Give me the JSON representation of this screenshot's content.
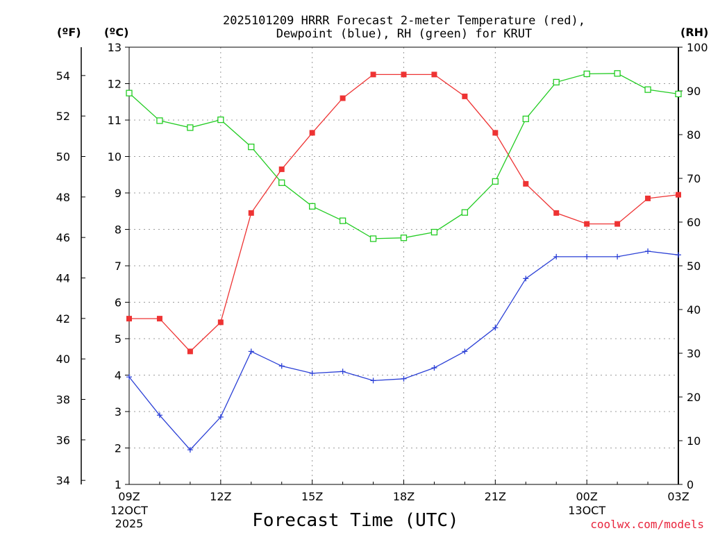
{
  "chart_data": {
    "type": "line",
    "title_line1": "2025101209 HRRR Forecast 2-meter Temperature (red),",
    "title_line2": "Dewpoint (blue), RH (green) for KRUT",
    "xlabel": "Forecast Time (UTC)",
    "credit": "coolwx.com/models",
    "y_left_c_label": "(ºC)",
    "y_left_f_label": "(ºF)",
    "y_right_label": "(RH)",
    "ylim_c": [
      1,
      13
    ],
    "ylim_rh": [
      0,
      100
    ],
    "yticks_c": [
      "1",
      "2",
      "3",
      "4",
      "5",
      "6",
      "7",
      "8",
      "9",
      "10",
      "11",
      "12",
      "13"
    ],
    "yticks_f": [
      "34",
      "36",
      "38",
      "40",
      "42",
      "44",
      "46",
      "48",
      "50",
      "52",
      "54"
    ],
    "yticks_rh": [
      "0",
      "10",
      "20",
      "30",
      "40",
      "50",
      "60",
      "70",
      "80",
      "90",
      "100"
    ],
    "x_hours": [
      "09Z",
      "10Z",
      "11Z",
      "12Z",
      "13Z",
      "14Z",
      "15Z",
      "16Z",
      "17Z",
      "18Z",
      "19Z",
      "20Z",
      "21Z",
      "22Z",
      "23Z",
      "00Z",
      "01Z",
      "02Z",
      "03Z"
    ],
    "x_tick_labels": [
      {
        "hour_index": 0,
        "label": "09Z"
      },
      {
        "hour_index": 3,
        "label": "12Z"
      },
      {
        "hour_index": 6,
        "label": "15Z"
      },
      {
        "hour_index": 9,
        "label": "18Z"
      },
      {
        "hour_index": 12,
        "label": "21Z"
      },
      {
        "hour_index": 15,
        "label": "00Z"
      },
      {
        "hour_index": 18,
        "label": "03Z"
      }
    ],
    "date_labels": [
      {
        "hour_index": 0,
        "line1": "12OCT",
        "line2": "2025"
      },
      {
        "hour_index": 15,
        "line1": "13OCT",
        "line2": ""
      }
    ],
    "series": [
      {
        "name": "Temperature",
        "axis": "c",
        "color": "#ee3333",
        "marker": "filled-square",
        "values": [
          5.55,
          5.55,
          4.65,
          5.45,
          8.45,
          9.65,
          10.65,
          11.6,
          12.25,
          12.25,
          12.25,
          11.65,
          10.65,
          9.25,
          8.45,
          8.15,
          8.15,
          8.85,
          8.95
        ]
      },
      {
        "name": "Dewpoint",
        "axis": "c",
        "color": "#2a3fd6",
        "marker": "plus",
        "values": [
          3.95,
          2.9,
          1.95,
          2.85,
          4.65,
          4.25,
          4.05,
          4.1,
          3.85,
          3.9,
          4.2,
          4.65,
          5.3,
          6.65,
          7.25,
          7.25,
          7.25,
          7.4,
          7.3
        ]
      },
      {
        "name": "RH",
        "axis": "rh",
        "color": "#22cc22",
        "marker": "open-square",
        "values": [
          89.5,
          83.2,
          81.6,
          83.4,
          77.2,
          69,
          63.6,
          60.3,
          56.2,
          56.4,
          57.7,
          62.2,
          69.3,
          83.6,
          92,
          93.9,
          94,
          90.3,
          89.3
        ]
      }
    ]
  }
}
